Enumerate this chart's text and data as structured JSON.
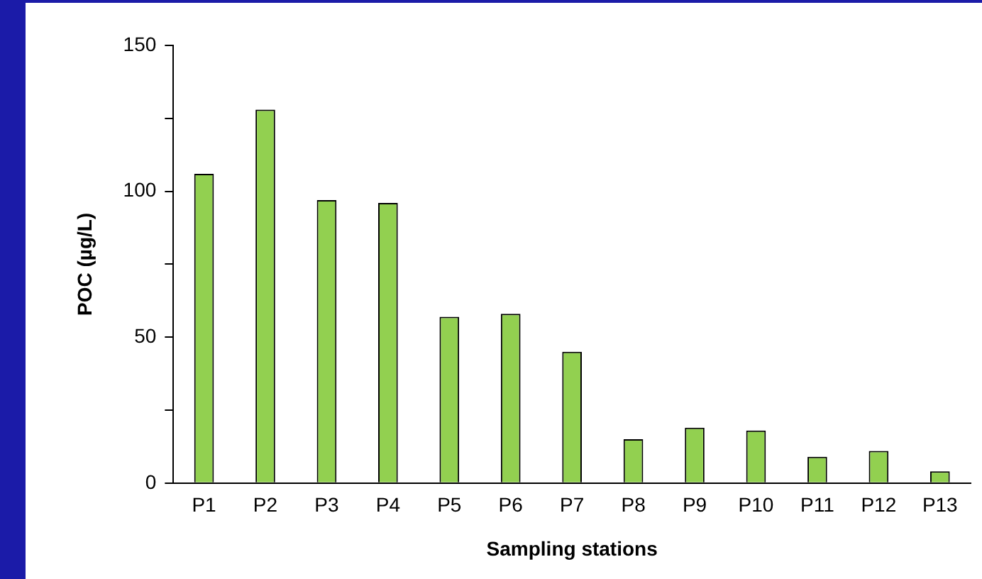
{
  "chart_data": {
    "type": "bar",
    "xlabel": "Sampling stations",
    "ylabel": "POC (µg/L)",
    "categories": [
      "P1",
      "P2",
      "P3",
      "P4",
      "P5",
      "P6",
      "P7",
      "P8",
      "P9",
      "P10",
      "P11",
      "P12",
      "P13"
    ],
    "values": [
      106,
      128,
      97,
      96,
      57,
      58,
      45,
      15,
      19,
      18,
      9,
      11,
      4
    ],
    "color": "#92d050",
    "ylim": [
      0,
      150
    ],
    "yticks": [
      0,
      {
        "value": 25,
        "label": null
      },
      50,
      {
        "value": 75,
        "label": null
      },
      100,
      {
        "value": 125,
        "label": null
      },
      150
    ],
    "grid": false,
    "legend": false
  }
}
